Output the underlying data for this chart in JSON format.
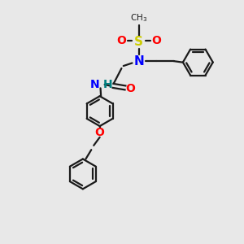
{
  "bg_color": "#e8e8e8",
  "bond_color": "#1a1a1a",
  "N_color": "#0000ff",
  "O_color": "#ff0000",
  "S_color": "#cccc00",
  "H_color": "#008080",
  "line_width": 1.6,
  "figsize": [
    3.0,
    3.0
  ],
  "dpi": 100,
  "xlim": [
    0,
    10
  ],
  "ylim": [
    0,
    10
  ]
}
